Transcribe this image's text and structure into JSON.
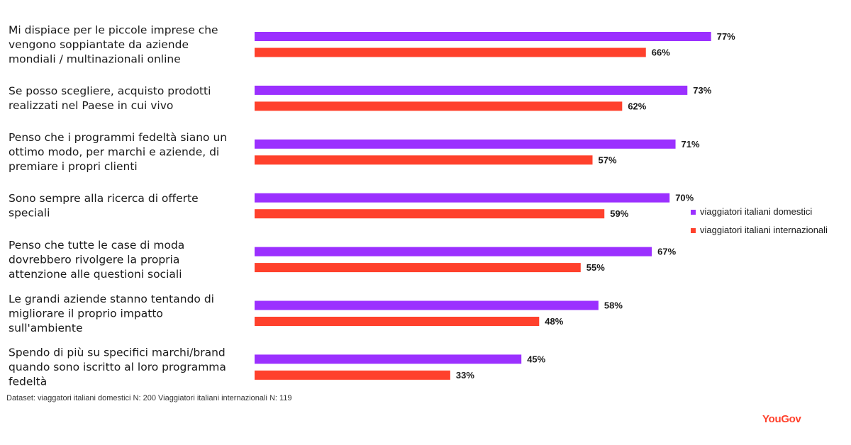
{
  "chart_data": {
    "type": "bar",
    "orientation": "horizontal",
    "categories": [
      [
        "Mi dispiace per le piccole imprese che",
        "vengono soppiantate da aziende",
        "mondiali / multinazionali online"
      ],
      [
        "Se posso scegliere, acquisto prodotti",
        "realizzati nel Paese in cui vivo"
      ],
      [
        "Penso che i programmi fedeltà siano un",
        "ottimo modo, per marchi e aziende, di",
        "premiare i propri clienti"
      ],
      [
        "Sono sempre alla ricerca di offerte",
        "speciali"
      ],
      [
        "Penso che tutte le case di moda",
        "dovrebbero rivolgere la propria",
        "attenzione alle questioni sociali"
      ],
      [
        "Le grandi aziende stanno tentando di",
        "migliorare il proprio impatto",
        "sull'ambiente"
      ],
      [
        "Spendo di più su specifici marchi/brand",
        "quando sono iscritto al loro programma",
        "fedeltà"
      ]
    ],
    "series": [
      {
        "name": "viaggiatori italiani domestici",
        "color": "#9b30ff",
        "values": [
          77,
          73,
          71,
          70,
          67,
          58,
          45
        ],
        "labels": [
          "77%",
          "73%",
          "71%",
          "70%",
          "67%",
          "58%",
          "45%"
        ]
      },
      {
        "name": "viaggiatori italiani internazionali",
        "color": "#ff412c",
        "values": [
          66,
          62,
          57,
          59,
          55,
          48,
          33
        ],
        "labels": [
          "66%",
          "62%",
          "57%",
          "59%",
          "55%",
          "48%",
          "33%"
        ]
      }
    ],
    "legend_position": "right",
    "grid": false,
    "value_unit": "%"
  },
  "footnote": "Dataset: viaggatori italiani domestici N: 200 Viaggiatori italiani internazionali N: 119",
  "brand": {
    "name": "YouGov",
    "color": "#ff412c"
  }
}
